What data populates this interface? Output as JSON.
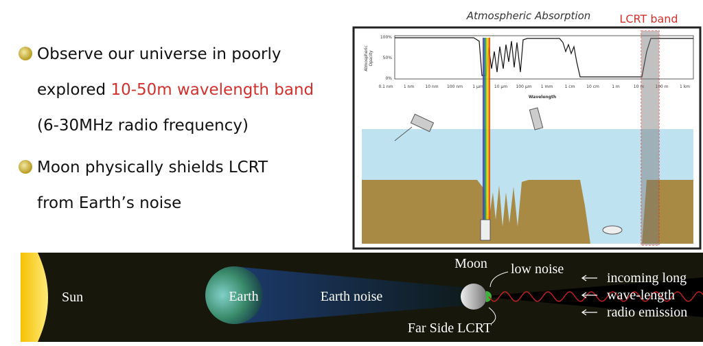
{
  "bullets": [
    {
      "lines": [
        "Observe our universe in poorly",
        "explored "
      ],
      "highlight": "10-50m wavelength band",
      "last": "(6-30MHz radio frequency)"
    },
    {
      "lines": [
        "Moon physically shields LCRT",
        "from Earth’s noise"
      ]
    }
  ],
  "figure": {
    "title": "Atmospheric Absorption",
    "band_label": "LCRT band",
    "y_label": [
      "Atmospheric",
      "Opacity"
    ],
    "y_ticks": [
      "100%",
      "50%",
      "0%"
    ],
    "x_ticks": [
      "0.1 nm",
      "1 nm",
      "10 nm",
      "100 nm",
      "1 µm",
      "10 µm",
      "100 µm",
      "1 mm",
      "1 cm",
      "10 cm",
      "1 m",
      "10 m",
      "100 m",
      "1 km"
    ],
    "x_label": "Wavelength"
  },
  "scene": {
    "sun": "Sun",
    "earth": "Earth",
    "earth_noise": "Earth noise",
    "moon": "Moon",
    "low_noise": "low noise",
    "far_side": "Far Side LCRT",
    "emission": [
      "incoming long",
      "wave-length",
      "radio emission"
    ]
  }
}
